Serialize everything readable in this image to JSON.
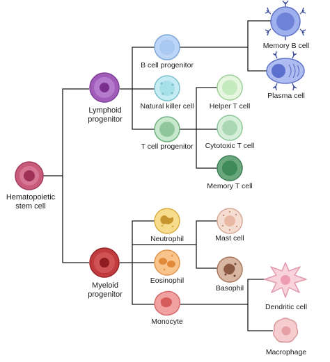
{
  "cells": {
    "hematopoietic": {
      "label_1": "Hematopoietic",
      "label_2": "stem cell"
    },
    "lymphoid": {
      "label_1": "Lymphoid",
      "label_2": "progenitor"
    },
    "myeloid": {
      "label_1": "Myeloid",
      "label_2": "progenitor"
    },
    "b_cell": {
      "label": "B cell progenitor"
    },
    "nk_cell": {
      "label": "Natural killer cell"
    },
    "t_cell": {
      "label": "T cell progenitor"
    },
    "memory_b": {
      "label": "Memory B cell"
    },
    "plasma": {
      "label": "Plasma cell"
    },
    "helper_t": {
      "label": "Helper T cell"
    },
    "cytotoxic_t": {
      "label": "Cytotoxic T cell"
    },
    "memory_t": {
      "label": "Memory T cell"
    },
    "neutrophil": {
      "label": "Neutrophil"
    },
    "eosinophil": {
      "label": "Eosinophil"
    },
    "monocyte": {
      "label": "Monocyte"
    },
    "mast": {
      "label": "Mast cell"
    },
    "basophil": {
      "label": "Basophil"
    },
    "dendritic": {
      "label": "Dendritic cell"
    },
    "macrophage": {
      "label": "Macrophage"
    }
  },
  "colors": {
    "connector": "#1a1a1a",
    "hematopoietic": "#c85a7a",
    "lymphoid": "#a05cb8",
    "myeloid": "#c03a3e",
    "b_cell": "#a9c8f2",
    "nk_cell": "#a8e0ea",
    "t_cell": "#9fd1a8",
    "helper_t": "#d6f0cf",
    "cytotoxic_t": "#bfe3c6",
    "memory_t": "#4e9a68",
    "memory_b": "#7a8ee0",
    "plasma": "#8aa0ea",
    "neutrophil": "#f6d27a",
    "eosinophil": "#f6b777",
    "monocyte": "#ee8c8c",
    "mast": "#f3d4c6",
    "basophil": "#c9a08a",
    "dendritic": "#f6c6d2",
    "macrophage": "#f2c2c4"
  }
}
